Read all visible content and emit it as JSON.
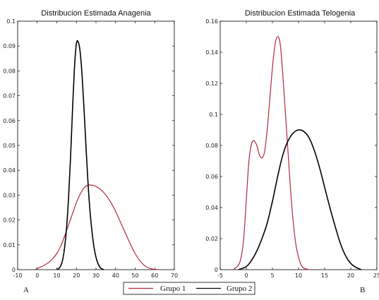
{
  "chart_data": [
    {
      "type": "line",
      "title": "Distribucion Estimada Anagenia",
      "panel_label": "A",
      "xlim": [
        -10,
        70
      ],
      "ylim": [
        0,
        0.1
      ],
      "xticks": [
        -10,
        0,
        10,
        20,
        30,
        40,
        50,
        60,
        70
      ],
      "yticks": [
        0,
        0.01,
        0.02,
        0.03,
        0.04,
        0.05,
        0.06,
        0.07,
        0.08,
        0.09,
        0.1
      ],
      "series": [
        {
          "name": "Grupo 1",
          "color": "#b0283a",
          "x": [
            -1,
            0,
            3,
            6,
            8,
            10,
            12,
            14,
            16,
            18,
            20,
            22,
            24,
            26,
            28,
            30,
            32,
            34,
            36,
            38,
            40,
            42,
            44,
            46,
            48,
            50,
            52,
            54,
            56,
            58,
            60,
            62
          ],
          "y": [
            0,
            0.0005,
            0.0015,
            0.003,
            0.0045,
            0.0065,
            0.0095,
            0.0135,
            0.018,
            0.0225,
            0.027,
            0.0305,
            0.033,
            0.034,
            0.034,
            0.0335,
            0.0325,
            0.031,
            0.029,
            0.0265,
            0.0235,
            0.02,
            0.0165,
            0.013,
            0.0095,
            0.0065,
            0.004,
            0.0022,
            0.001,
            0.0004,
            0.0001,
            0
          ]
        },
        {
          "name": "Grupo 2",
          "color": "#000000",
          "x": [
            10,
            11,
            12,
            13,
            14,
            15,
            16,
            17,
            18,
            19,
            20,
            21,
            22,
            23,
            24,
            25,
            26,
            27,
            28,
            29,
            30,
            31,
            32,
            33,
            34
          ],
          "y": [
            0,
            0.0005,
            0.0015,
            0.004,
            0.009,
            0.017,
            0.029,
            0.045,
            0.064,
            0.081,
            0.091,
            0.0915,
            0.087,
            0.077,
            0.063,
            0.048,
            0.034,
            0.023,
            0.015,
            0.009,
            0.005,
            0.0025,
            0.001,
            0.0003,
            0
          ]
        }
      ]
    },
    {
      "type": "line",
      "title": "Distribucion Estimada Telogenia",
      "panel_label": "B",
      "xlim": [
        -5,
        25
      ],
      "ylim": [
        0,
        0.16
      ],
      "xticks": [
        -5,
        0,
        5,
        10,
        15,
        20,
        25
      ],
      "yticks": [
        0,
        0.02,
        0.04,
        0.06,
        0.08,
        0.1,
        0.12,
        0.14,
        0.16
      ],
      "series": [
        {
          "name": "Grupo 1",
          "color": "#b0283a",
          "x": [
            -2.5,
            -1.5,
            -1,
            -0.5,
            0,
            0.5,
            1,
            1.5,
            2,
            2.5,
            3,
            3.5,
            4,
            4.5,
            5,
            5.5,
            6,
            6.5,
            7,
            7.5,
            8,
            8.5,
            9,
            9.5,
            10,
            10.5,
            11,
            12
          ],
          "y": [
            0,
            0.003,
            0.008,
            0.02,
            0.045,
            0.07,
            0.081,
            0.083,
            0.08,
            0.074,
            0.072,
            0.076,
            0.09,
            0.11,
            0.13,
            0.145,
            0.15,
            0.145,
            0.125,
            0.1,
            0.075,
            0.05,
            0.03,
            0.016,
            0.008,
            0.003,
            0.001,
            0
          ]
        },
        {
          "name": "Grupo 2",
          "color": "#000000",
          "x": [
            -1.5,
            0,
            1,
            2,
            3,
            4,
            5,
            6,
            7,
            8,
            9,
            10,
            11,
            12,
            13,
            14,
            15,
            16,
            17,
            18,
            19,
            20,
            21,
            22
          ],
          "y": [
            0,
            0.002,
            0.006,
            0.012,
            0.02,
            0.03,
            0.044,
            0.06,
            0.074,
            0.083,
            0.088,
            0.09,
            0.089,
            0.085,
            0.077,
            0.066,
            0.053,
            0.04,
            0.028,
            0.017,
            0.009,
            0.004,
            0.0015,
            0
          ]
        }
      ]
    }
  ],
  "legend": {
    "placement": "bottom-center",
    "items": [
      {
        "label": "Grupo 1",
        "color": "#b0283a"
      },
      {
        "label": "Grupo 2",
        "color": "#000000"
      }
    ]
  }
}
